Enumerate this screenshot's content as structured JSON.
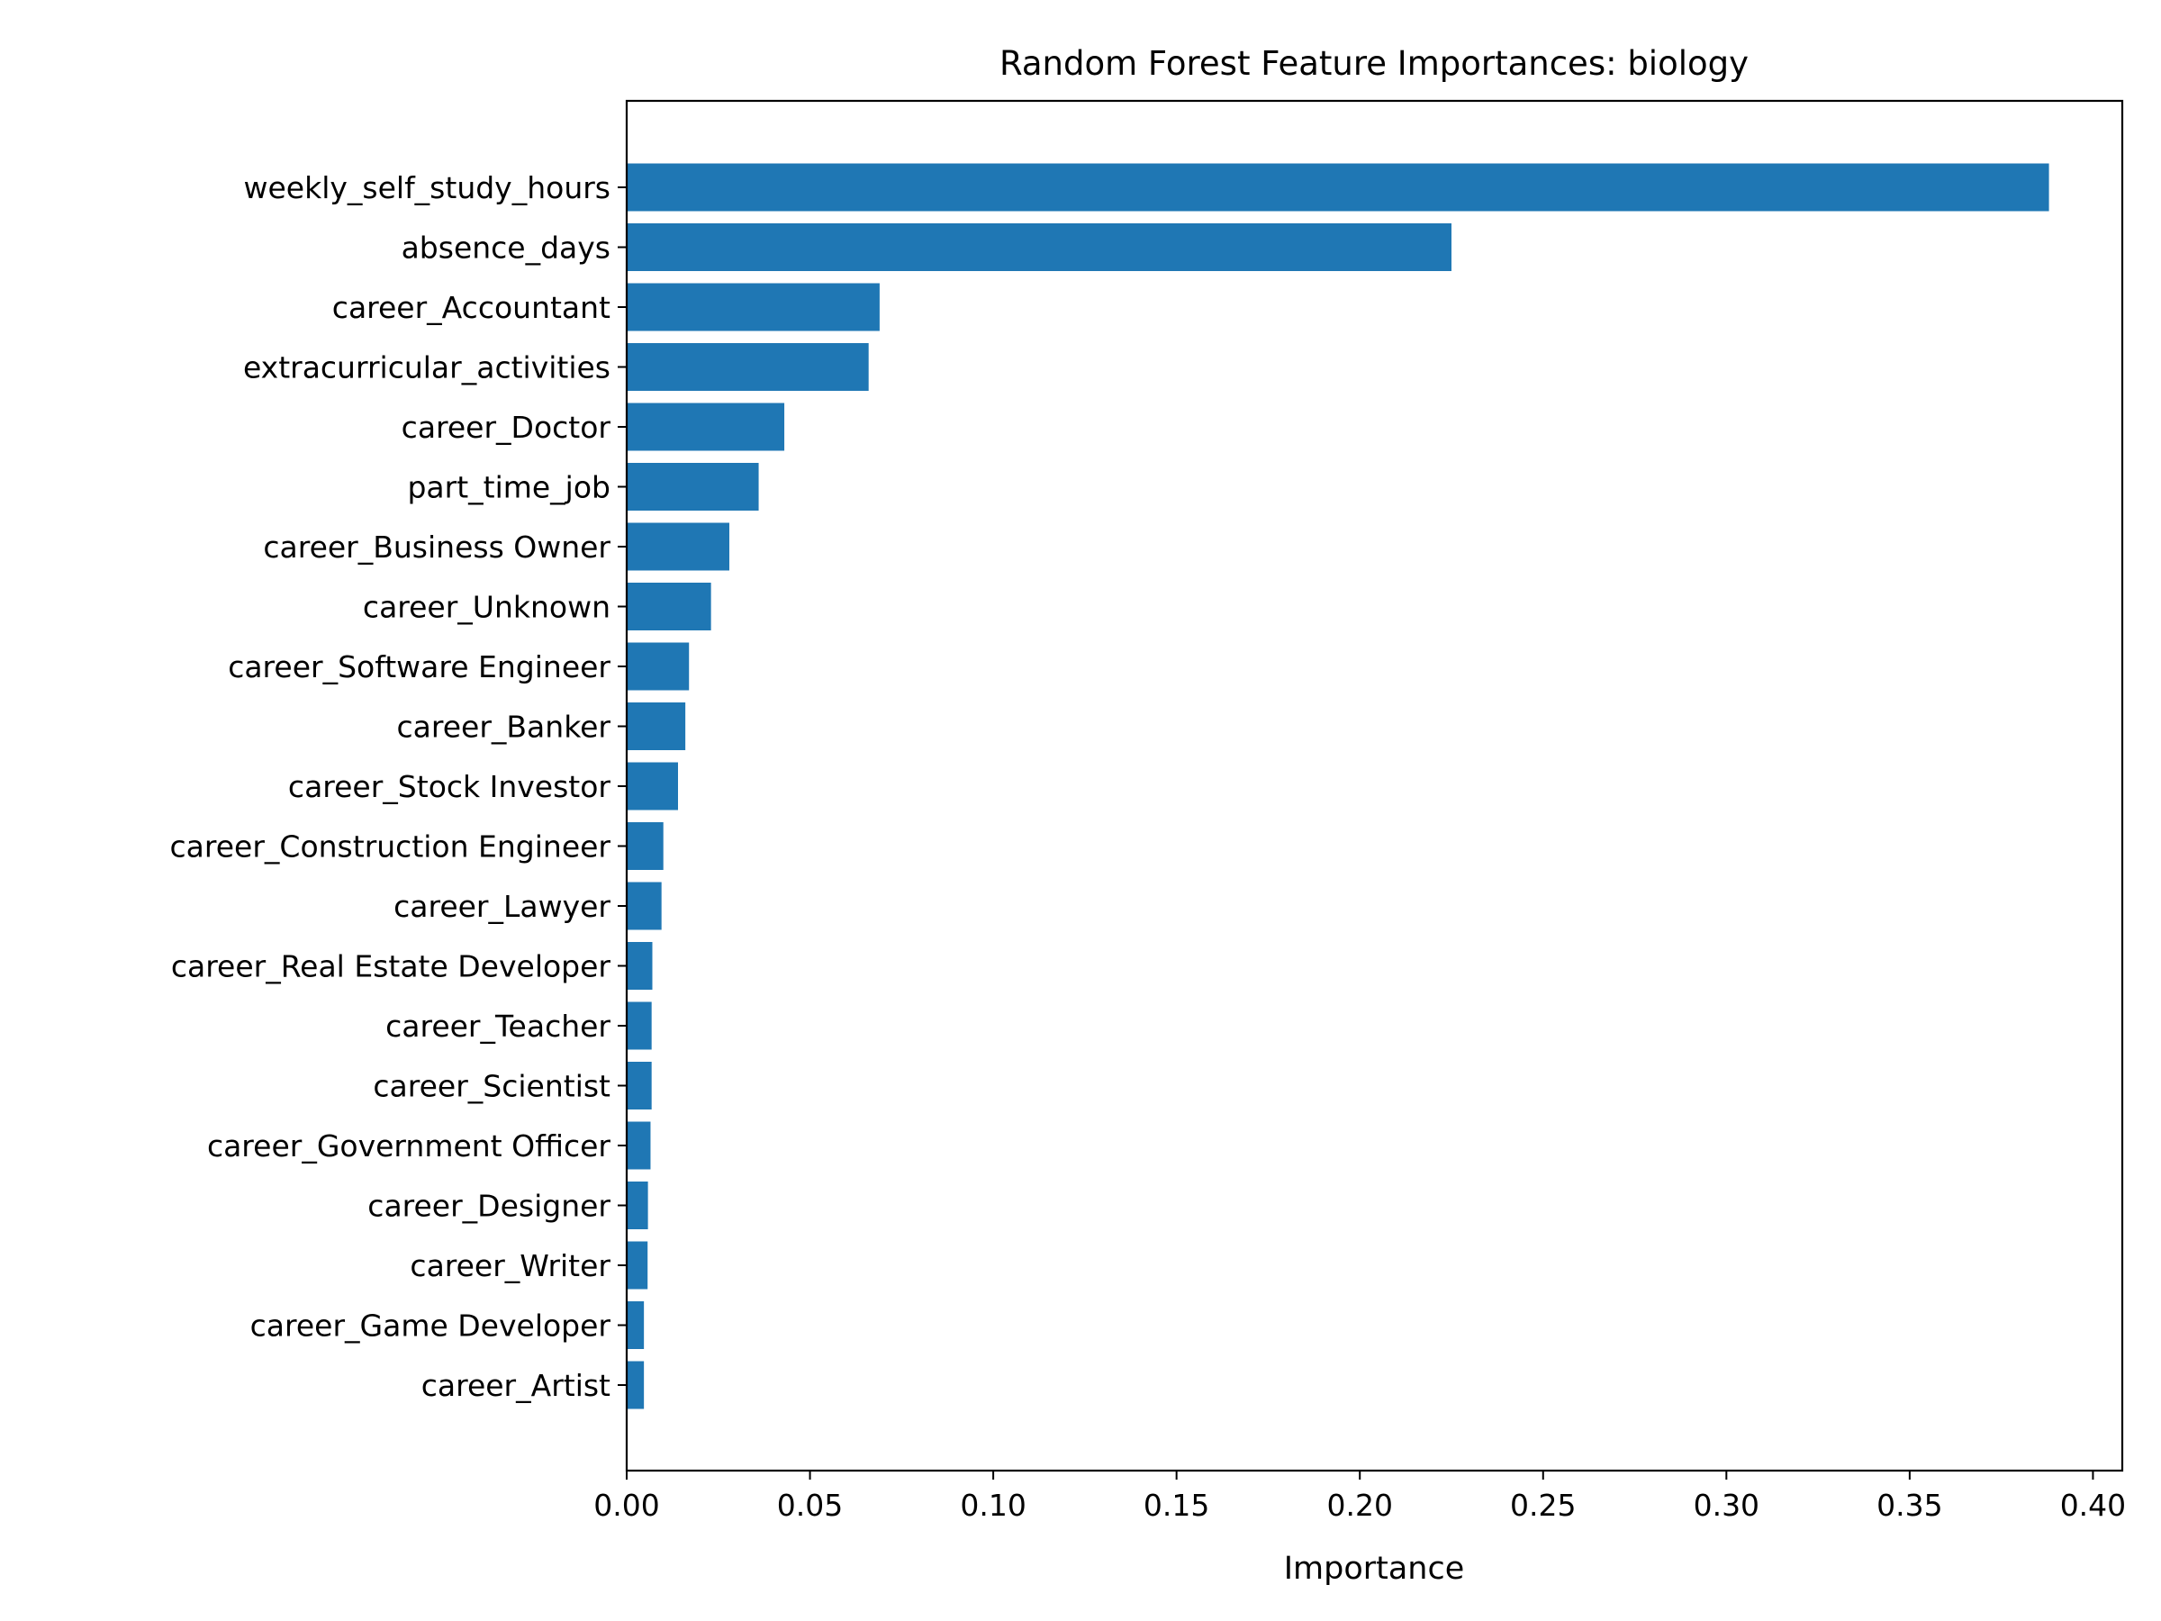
{
  "chart_data": {
    "type": "bar",
    "orientation": "horizontal",
    "title": "Random Forest Feature Importances: biology",
    "xlabel": "Importance",
    "ylabel": "",
    "xlim": [
      0.0,
      0.408
    ],
    "xticks": [
      0.0,
      0.05,
      0.1,
      0.15,
      0.2,
      0.25,
      0.3,
      0.35,
      0.4
    ],
    "xtick_labels": [
      "0.00",
      "0.05",
      "0.10",
      "0.15",
      "0.20",
      "0.25",
      "0.30",
      "0.35",
      "0.40"
    ],
    "grid": false,
    "legend": "none",
    "bar_color": "#1f77b4",
    "categories": [
      "weekly_self_study_hours",
      "absence_days",
      "career_Accountant",
      "extracurricular_activities",
      "career_Doctor",
      "part_time_job",
      "career_Business Owner",
      "career_Unknown",
      "career_Software Engineer",
      "career_Banker",
      "career_Stock Investor",
      "career_Construction Engineer",
      "career_Lawyer",
      "career_Real Estate Developer",
      "career_Teacher",
      "career_Scientist",
      "career_Government Officer",
      "career_Designer",
      "career_Writer",
      "career_Game Developer",
      "career_Artist"
    ],
    "values": [
      0.388,
      0.225,
      0.069,
      0.066,
      0.043,
      0.036,
      0.028,
      0.023,
      0.017,
      0.016,
      0.014,
      0.01,
      0.0095,
      0.007,
      0.0068,
      0.0068,
      0.0065,
      0.0058,
      0.0057,
      0.0047,
      0.0047
    ]
  }
}
